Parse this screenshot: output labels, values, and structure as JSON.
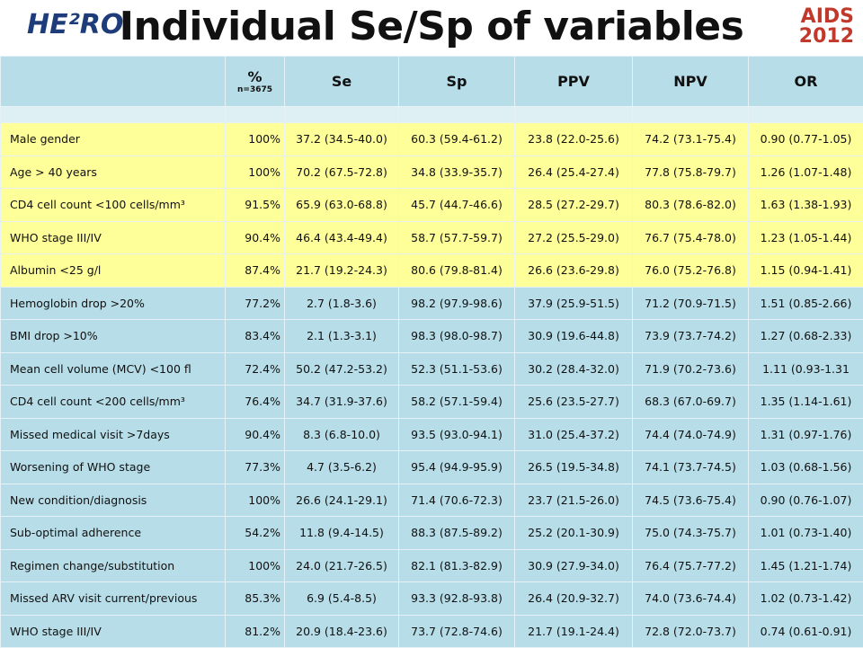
{
  "header": {
    "title": "Individual Se/Sp of variables",
    "logo_left": "HE²RO",
    "logo_right": "AIDS 2012"
  },
  "table": {
    "columns": [
      "%",
      "Se",
      "Sp",
      "PPV",
      "NPV",
      "OR"
    ],
    "column_note": "n=3675",
    "rows": [
      [
        "Male gender",
        "100%",
        "37.2 (34.5-40.0)",
        "60.3 (59.4-61.2)",
        "23.8 (22.0-25.6)",
        "74.2 (73.1-75.4)",
        "0.90 (0.77-1.05)"
      ],
      [
        "Age > 40 years",
        "100%",
        "70.2 (67.5-72.8)",
        "34.8 (33.9-35.7)",
        "26.4 (25.4-27.4)",
        "77.8 (75.8-79.7)",
        "1.26 (1.07-1.48)"
      ],
      [
        "CD4 cell count <100 cells/mm³",
        "91.5%",
        "65.9 (63.0-68.8)",
        "45.7 (44.7-46.6)",
        "28.5 (27.2-29.7)",
        "80.3 (78.6-82.0)",
        "1.63 (1.38-1.93)"
      ],
      [
        "WHO stage III/IV",
        "90.4%",
        "46.4 (43.4-49.4)",
        "58.7 (57.7-59.7)",
        "27.2 (25.5-29.0)",
        "76.7 (75.4-78.0)",
        "1.23 (1.05-1.44)"
      ],
      [
        "Albumin <25 g/l",
        "87.4%",
        "21.7 (19.2-24.3)",
        "80.6 (79.8-81.4)",
        "26.6 (23.6-29.8)",
        "76.0 (75.2-76.8)",
        "1.15 (0.94-1.41)"
      ],
      [
        "Hemoglobin drop >20%",
        "77.2%",
        "2.7 (1.8-3.6)",
        "98.2 (97.9-98.6)",
        "37.9 (25.9-51.5)",
        "71.2 (70.9-71.5)",
        "1.51 (0.85-2.66)"
      ],
      [
        "BMI drop >10%",
        "83.4%",
        "2.1 (1.3-3.1)",
        "98.3 (98.0-98.7)",
        "30.9 (19.6-44.8)",
        "73.9 (73.7-74.2)",
        "1.27 (0.68-2.33)"
      ],
      [
        "Mean cell volume (MCV) <100 fl",
        "72.4%",
        "50.2 (47.2-53.2)",
        "52.3 (51.1-53.6)",
        "30.2 (28.4-32.0)",
        "71.9 (70.2-73.6)",
        "1.11 (0.93-1.31"
      ],
      [
        "CD4 cell count <200 cells/mm³",
        "76.4%",
        "34.7 (31.9-37.6)",
        "58.2 (57.1-59.4)",
        "25.6 (23.5-27.7)",
        "68.3 (67.0-69.7)",
        "1.35 (1.14-1.61)"
      ],
      [
        "Missed medical visit >7days",
        "90.4%",
        "8.3 (6.8-10.0)",
        "93.5 (93.0-94.1)",
        "31.0 (25.4-37.2)",
        "74.4 (74.0-74.9)",
        "1.31 (0.97-1.76)"
      ],
      [
        "Worsening of WHO stage",
        "77.3%",
        "4.7 (3.5-6.2)",
        "95.4 (94.9-95.9)",
        "26.5 (19.5-34.8)",
        "74.1 (73.7-74.5)",
        "1.03 (0.68-1.56)"
      ],
      [
        "New condition/diagnosis",
        "100%",
        "26.6 (24.1-29.1)",
        "71.4 (70.6-72.3)",
        "23.7 (21.5-26.0)",
        "74.5 (73.6-75.4)",
        "0.90 (0.76-1.07)"
      ],
      [
        "Sub-optimal adherence",
        "54.2%",
        "11.8 (9.4-14.5)",
        "88.3 (87.5-89.2)",
        "25.2 (20.1-30.9)",
        "75.0 (74.3-75.7)",
        "1.01 (0.73-1.40)"
      ],
      [
        "Regimen change/substitution",
        "100%",
        "24.0 (21.7-26.5)",
        "82.1 (81.3-82.9)",
        "30.9 (27.9-34.0)",
        "76.4 (75.7-77.2)",
        "1.45 (1.21-1.74)"
      ],
      [
        "Missed ARV visit current/previous",
        "85.3%",
        "6.9 (5.4-8.5)",
        "93.3 (92.8-93.8)",
        "26.4 (20.9-32.7)",
        "74.0 (73.6-74.4)",
        "1.02 (0.73-1.42)"
      ],
      [
        "WHO stage III/IV",
        "81.2%",
        "20.9 (18.4-23.6)",
        "73.7 (72.8-74.6)",
        "21.7 (19.1-24.4)",
        "72.8 (72.0-73.7)",
        "0.74 (0.61-0.91)"
      ]
    ]
  }
}
